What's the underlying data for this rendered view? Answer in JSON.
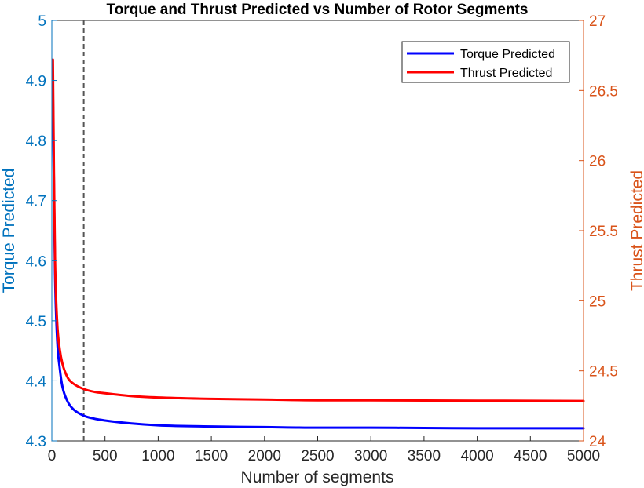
{
  "chart_data": {
    "type": "line",
    "title": "Torque and Thrust Predicted vs Number of Rotor Segments",
    "xlabel": "Number of segments",
    "ylabel_left": "Torque Predicted",
    "ylabel_right": "Thrust Predicted",
    "xlim": [
      0,
      5000
    ],
    "ylim_left": [
      4.3,
      5
    ],
    "ylim_right": [
      24,
      27
    ],
    "x_ticks": [
      "0",
      "500",
      "1000",
      "1500",
      "2000",
      "2500",
      "3000",
      "3500",
      "4000",
      "4500",
      "5000"
    ],
    "y_ticks_left": [
      "4.3",
      "4.4",
      "4.5",
      "4.6",
      "4.7",
      "4.8",
      "4.9",
      "5"
    ],
    "y_ticks_right": [
      "24",
      "24.5",
      "25",
      "25.5",
      "26",
      "26.5",
      "27"
    ],
    "reference_line_x": 300,
    "legend_position": "top-right",
    "grid": false,
    "series": [
      {
        "name": "Torque Predicted",
        "axis": "left",
        "color": "#0000ff",
        "x": [
          10,
          20,
          30,
          50,
          75,
          100,
          150,
          200,
          300,
          400,
          500,
          750,
          1000,
          1500,
          2000,
          2500,
          3000,
          3500,
          4000,
          4500,
          5000
        ],
        "y": [
          4.89,
          4.72,
          4.58,
          4.47,
          4.42,
          4.39,
          4.365,
          4.353,
          4.342,
          4.337,
          4.334,
          4.329,
          4.326,
          4.324,
          4.323,
          4.322,
          4.322,
          4.3215,
          4.321,
          4.321,
          4.321
        ]
      },
      {
        "name": "Thrust Predicted",
        "axis": "right",
        "color": "#ff0000",
        "x": [
          10,
          20,
          30,
          50,
          75,
          100,
          150,
          200,
          300,
          400,
          500,
          750,
          1000,
          1500,
          2000,
          2500,
          3000,
          3500,
          4000,
          4500,
          5000
        ],
        "y": [
          26.72,
          25.9,
          25.3,
          24.85,
          24.65,
          24.55,
          24.45,
          24.41,
          24.37,
          24.35,
          24.34,
          24.32,
          24.31,
          24.3,
          24.295,
          24.29,
          24.29,
          24.288,
          24.287,
          24.286,
          24.285
        ]
      }
    ]
  },
  "colors": {
    "left_axis": "#0072bd",
    "right_axis": "#d95319",
    "reference_line": "#555555"
  }
}
